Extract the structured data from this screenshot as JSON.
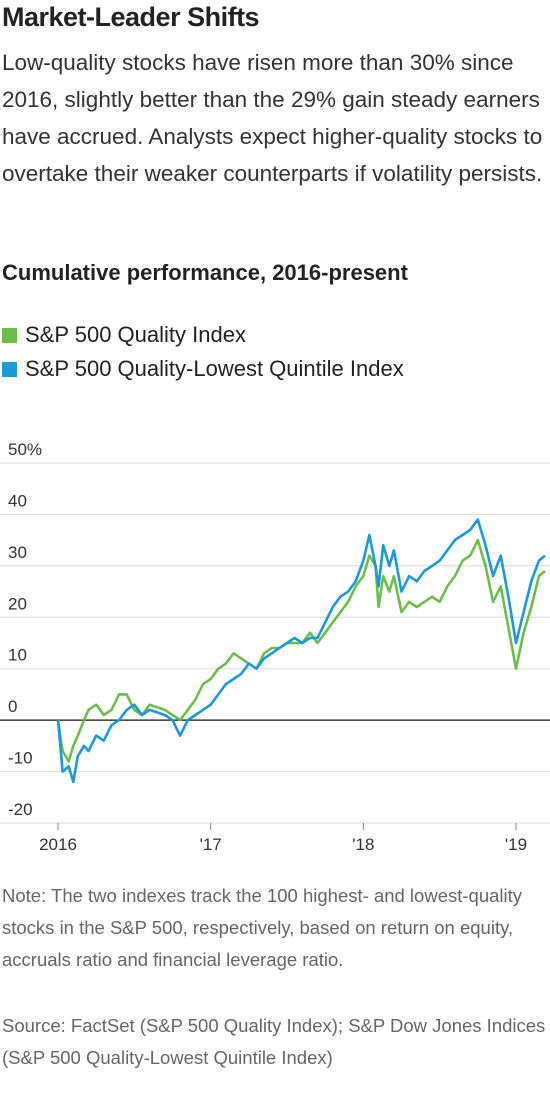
{
  "chart_data": {
    "type": "line",
    "title": "Market-Leader Shifts",
    "subtitle": "Low-quality stocks have risen more than 30% since 2016, slightly better than the 29% gain steady earners have accrued. Analysts expect higher-quality stocks to overtake their weaker counterparts if volatility persists.",
    "caption": "Cumulative performance, 2016-present",
    "note": "Note: The two indexes track the 100 highest- and lowest-quality stocks in the S&P 500, respectively, based on return on equity, accruals ratio and financial leverage ratio.",
    "source": "Source: FactSet (S&P 500 Quality Index); S&P Dow Jones Indices (S&P 500 Quality-Lowest Quintile Index)",
    "x": [
      2016.0,
      2016.03,
      2016.07,
      2016.1,
      2016.13,
      2016.17,
      2016.2,
      2016.25,
      2016.3,
      2016.35,
      2016.4,
      2016.45,
      2016.5,
      2016.55,
      2016.6,
      2016.7,
      2016.75,
      2016.8,
      2016.85,
      2016.9,
      2016.95,
      2017.0,
      2017.05,
      2017.1,
      2017.15,
      2017.2,
      2017.25,
      2017.3,
      2017.35,
      2017.4,
      2017.45,
      2017.5,
      2017.55,
      2017.6,
      2017.65,
      2017.7,
      2017.75,
      2017.8,
      2017.85,
      2017.9,
      2017.95,
      2018.0,
      2018.04,
      2018.08,
      2018.1,
      2018.13,
      2018.17,
      2018.2,
      2018.25,
      2018.3,
      2018.35,
      2018.4,
      2018.45,
      2018.5,
      2018.55,
      2018.6,
      2018.65,
      2018.7,
      2018.75,
      2018.8,
      2018.85,
      2018.9,
      2018.95,
      2019.0,
      2019.05,
      2019.1,
      2019.15,
      2019.19
    ],
    "series": [
      {
        "name": "S&P 500 Quality Index",
        "color": "#6abf4b",
        "values": [
          0,
          -6,
          -8,
          -5,
          -3,
          0,
          2,
          3,
          1,
          2,
          5,
          5,
          2,
          1,
          3,
          2,
          1,
          0,
          2,
          4,
          7,
          8,
          10,
          11,
          13,
          12,
          11,
          10,
          13,
          14,
          14,
          15,
          15,
          15,
          17,
          15,
          17,
          19,
          21,
          23,
          26,
          28,
          32,
          30,
          22,
          28,
          25,
          28,
          21,
          23,
          22,
          23,
          24,
          23,
          26,
          28,
          31,
          32,
          35,
          30,
          23,
          26,
          18,
          10,
          17,
          22,
          28,
          29
        ]
      },
      {
        "name": "S&P 500 Quality-Lowest Quintile Index",
        "color": "#1a9ad6",
        "values": [
          0,
          -10,
          -9,
          -12,
          -7,
          -5,
          -6,
          -3,
          -4,
          -1,
          0,
          2,
          3,
          1,
          2,
          1,
          0,
          -3,
          0,
          1,
          2,
          3,
          5,
          7,
          8,
          9,
          11,
          10,
          12,
          13,
          14,
          15,
          16,
          15,
          16,
          16,
          19,
          22,
          24,
          25,
          27,
          31,
          36,
          30,
          26,
          34,
          30,
          33,
          25,
          28,
          27,
          29,
          30,
          31,
          33,
          35,
          36,
          37,
          39,
          34,
          28,
          32,
          24,
          15,
          21,
          27,
          31,
          32
        ]
      }
    ],
    "xlim": [
      2016,
      2019.19
    ],
    "xticks": [
      2016,
      {
        "value": 2017,
        "label": "'17"
      },
      {
        "value": 2018,
        "label": "'18"
      },
      {
        "value": 2019,
        "label": "'19"
      }
    ],
    "ylim": [
      -20,
      50
    ],
    "yticks": [
      -20,
      -10,
      0,
      10,
      20,
      30,
      40,
      {
        "value": 50,
        "label": "50%"
      }
    ],
    "grid": true
  }
}
